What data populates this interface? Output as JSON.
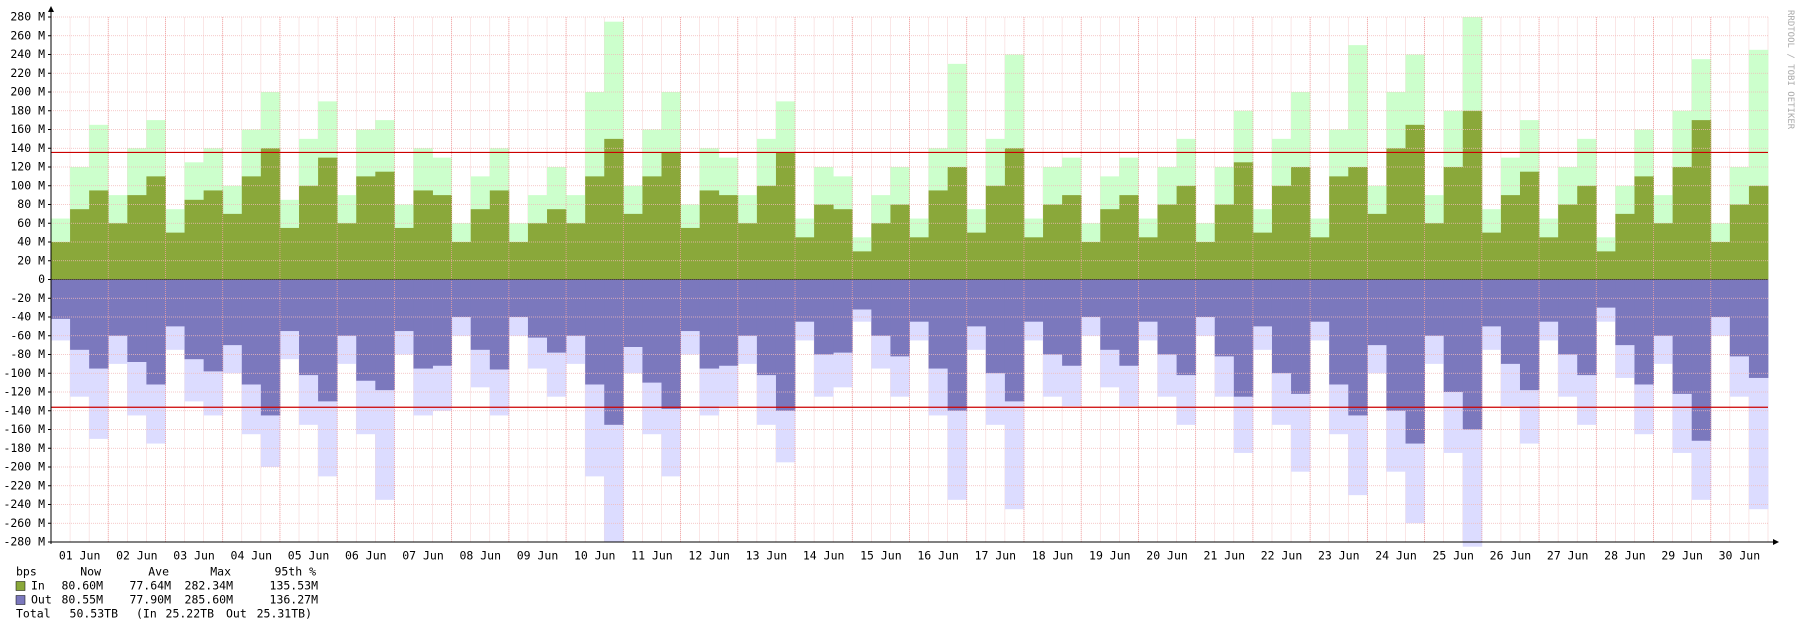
{
  "chart_data": {
    "type": "step-area",
    "watermark": "RRDTOOL / TOBI OETIKER",
    "grid": true,
    "categories": [
      null,
      "01 Jun",
      null,
      null,
      "02 Jun",
      null,
      null,
      "03 Jun",
      null,
      null,
      "04 Jun",
      null,
      null,
      "05 Jun",
      null,
      null,
      "06 Jun",
      null,
      null,
      "07 Jun",
      null,
      null,
      "08 Jun",
      null,
      null,
      "09 Jun",
      null,
      null,
      "10 Jun",
      null,
      null,
      "11 Jun",
      null,
      null,
      "12 Jun",
      null,
      null,
      "13 Jun",
      null,
      null,
      "14 Jun",
      null,
      null,
      "15 Jun",
      null,
      null,
      "16 Jun",
      null,
      null,
      "17 Jun",
      null,
      null,
      "18 Jun",
      null,
      null,
      "19 Jun",
      null,
      null,
      "20 Jun",
      null,
      null,
      "21 Jun",
      null,
      null,
      "22 Jun",
      null,
      null,
      "23 Jun",
      null,
      null,
      "24 Jun",
      null,
      null,
      "25 Jun",
      null,
      null,
      "26 Jun",
      null,
      null,
      "27 Jun",
      null,
      null,
      "28 Jun",
      null,
      null,
      "29 Jun",
      null,
      null,
      "30 Jun",
      null
    ],
    "series": [
      {
        "color": "#ccffcc",
        "values": [
          65,
          120,
          165,
          90,
          140,
          170,
          75,
          125,
          140,
          100,
          160,
          200,
          85,
          150,
          190,
          90,
          160,
          170,
          80,
          140,
          130,
          60,
          110,
          140,
          60,
          90,
          120,
          90,
          200,
          275,
          100,
          160,
          200,
          80,
          140,
          130,
          90,
          150,
          190,
          65,
          120,
          110,
          45,
          90,
          120,
          65,
          140,
          230,
          75,
          150,
          240,
          65,
          120,
          130,
          60,
          110,
          130,
          65,
          120,
          150,
          60,
          120,
          180,
          75,
          150,
          200,
          65,
          160,
          250,
          100,
          200,
          240,
          90,
          180,
          280,
          75,
          130,
          170,
          65,
          120,
          150,
          45,
          100,
          160,
          90,
          180,
          235,
          60,
          120,
          245
        ]
      },
      {
        "name": "In",
        "color": "#8aa83a",
        "values": [
          40,
          75,
          95,
          60,
          90,
          110,
          50,
          85,
          95,
          70,
          110,
          140,
          55,
          100,
          130,
          60,
          110,
          115,
          55,
          95,
          90,
          40,
          75,
          95,
          40,
          60,
          75,
          60,
          110,
          150,
          70,
          110,
          135,
          55,
          95,
          90,
          60,
          100,
          135,
          45,
          80,
          75,
          30,
          60,
          80,
          45,
          95,
          120,
          50,
          100,
          140,
          45,
          80,
          90,
          40,
          75,
          90,
          45,
          80,
          100,
          40,
          80,
          125,
          50,
          100,
          120,
          45,
          110,
          120,
          70,
          140,
          165,
          60,
          120,
          180,
          50,
          90,
          115,
          45,
          80,
          100,
          30,
          70,
          110,
          60,
          120,
          170,
          40,
          80,
          100
        ]
      },
      {
        "color": "#dcdcff",
        "values": [
          -65,
          -125,
          -170,
          -90,
          -145,
          -175,
          -75,
          -130,
          -145,
          -100,
          -165,
          -200,
          -85,
          -155,
          -210,
          -90,
          -165,
          -235,
          -80,
          -145,
          -140,
          -60,
          -115,
          -145,
          -60,
          -95,
          -125,
          -90,
          -210,
          -280,
          -100,
          -165,
          -210,
          -80,
          -145,
          -135,
          -90,
          -155,
          -195,
          -65,
          -125,
          -115,
          -45,
          -95,
          -125,
          -65,
          -145,
          -235,
          -75,
          -155,
          -245,
          -65,
          -125,
          -135,
          -60,
          -115,
          -135,
          -65,
          -125,
          -155,
          -60,
          -125,
          -185,
          -75,
          -155,
          -205,
          -65,
          -165,
          -230,
          -100,
          -205,
          -260,
          -90,
          -185,
          -285,
          -75,
          -135,
          -175,
          -65,
          -125,
          -155,
          -45,
          -105,
          -165,
          -90,
          -185,
          -235,
          -60,
          -125,
          -245
        ]
      },
      {
        "name": "Out",
        "color": "#7b78bd",
        "values": [
          -42,
          -75,
          -95,
          -60,
          -88,
          -112,
          -50,
          -85,
          -98,
          -70,
          -112,
          -145,
          -55,
          -102,
          -130,
          -60,
          -108,
          -118,
          -55,
          -95,
          -92,
          -40,
          -75,
          -96,
          -40,
          -62,
          -78,
          -60,
          -112,
          -155,
          -72,
          -110,
          -138,
          -55,
          -95,
          -92,
          -60,
          -102,
          -140,
          -45,
          -80,
          -78,
          -32,
          -60,
          -82,
          -45,
          -95,
          -140,
          -50,
          -100,
          -130,
          -45,
          -80,
          -92,
          -40,
          -75,
          -92,
          -45,
          -80,
          -102,
          -40,
          -82,
          -125,
          -50,
          -100,
          -122,
          -45,
          -112,
          -145,
          -70,
          -140,
          -175,
          -60,
          -120,
          -160,
          -50,
          -90,
          -118,
          -45,
          -80,
          -102,
          -30,
          -70,
          -112,
          -60,
          -122,
          -172,
          -40,
          -82,
          -105
        ]
      }
    ],
    "hlines": {
      "color": "#cc0000",
      "values": [
        135.53,
        -136.27
      ]
    },
    "ylim": [
      -280,
      280
    ],
    "yticks": [
      {
        "value": -280,
        "label": "-280 M"
      },
      {
        "value": -260,
        "label": "-260 M"
      },
      {
        "value": -240,
        "label": "-240 M"
      },
      {
        "value": -220,
        "label": "-220 M"
      },
      {
        "value": -200,
        "label": "-200 M"
      },
      {
        "value": -180,
        "label": "-180 M"
      },
      {
        "value": -160,
        "label": "-160 M"
      },
      {
        "value": -140,
        "label": "-140 M"
      },
      {
        "value": -120,
        "label": "-120 M"
      },
      {
        "value": -100,
        "label": "-100 M"
      },
      {
        "value": -80,
        "label": "-80 M"
      },
      {
        "value": -60,
        "label": "-60 M"
      },
      {
        "value": -40,
        "label": "-40 M"
      },
      {
        "value": -20,
        "label": "-20 M"
      },
      0,
      {
        "value": 20,
        "label": "20 M"
      },
      {
        "value": 40,
        "label": "40 M"
      },
      {
        "value": 60,
        "label": "60 M"
      },
      {
        "value": 80,
        "label": "80 M"
      },
      {
        "value": 100,
        "label": "100 M"
      },
      {
        "value": 120,
        "label": "120 M"
      },
      {
        "value": 140,
        "label": "140 M"
      },
      {
        "value": 160,
        "label": "160 M"
      },
      {
        "value": 180,
        "label": "180 M"
      },
      {
        "value": 200,
        "label": "200 M"
      },
      {
        "value": 220,
        "label": "220 M"
      },
      {
        "value": 240,
        "label": "240 M"
      },
      {
        "value": 260,
        "label": "260 M"
      },
      {
        "value": 280,
        "label": "280 M"
      }
    ],
    "legend": {
      "header": [
        "bps",
        "Now",
        "Ave",
        "Max",
        "95th %"
      ],
      "rows": [
        [
          "In",
          "80.60M",
          "77.64M",
          "282.34M",
          "135.53M"
        ],
        [
          "Out",
          "80.55M",
          "77.90M",
          "285.60M",
          "136.27M"
        ]
      ],
      "total": [
        "Total",
        "50.53TB",
        "(In",
        "25.22TB",
        "Out",
        "25.31TB)"
      ]
    }
  }
}
